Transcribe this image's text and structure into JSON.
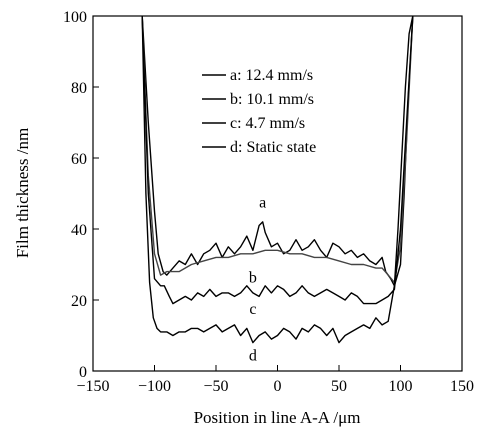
{
  "chart_data": {
    "type": "line",
    "xlabel": "Position in line A-A /μm",
    "ylabel": "Film thickness /nm",
    "xlim": [
      -150,
      150
    ],
    "ylim": [
      0,
      100
    ],
    "xticks": [
      -150,
      -100,
      -50,
      0,
      50,
      100,
      150
    ],
    "yticks": [
      0,
      20,
      40,
      60,
      80,
      100
    ],
    "grid": false,
    "legend_position": "upper-center",
    "series": [
      {
        "name": "a: 12.4 mm/s",
        "label": "a",
        "x": [
          -110,
          -105,
          -100,
          -97,
          -93,
          -90,
          -85,
          -80,
          -75,
          -70,
          -65,
          -60,
          -55,
          -50,
          -45,
          -40,
          -35,
          -30,
          -25,
          -20,
          -15,
          -12,
          -10,
          -5,
          0,
          5,
          10,
          15,
          20,
          25,
          30,
          35,
          40,
          45,
          50,
          55,
          60,
          65,
          70,
          75,
          80,
          85,
          88,
          92,
          95,
          100,
          103,
          106,
          110
        ],
        "y": [
          100,
          70,
          45,
          33,
          28,
          27,
          29,
          31,
          30,
          33,
          30,
          33,
          34,
          36,
          32,
          35,
          33,
          35,
          38,
          34,
          41,
          42,
          39,
          35,
          36,
          33,
          34,
          37,
          34,
          35,
          37,
          34,
          32,
          36,
          35,
          33,
          34,
          32,
          33,
          31,
          30,
          32,
          28,
          26,
          24,
          30,
          50,
          75,
          100
        ]
      },
      {
        "name": "b: 10.1 mm/s",
        "label": "b",
        "x": [
          -110,
          -105,
          -100,
          -95,
          -90,
          -85,
          -80,
          -70,
          -60,
          -50,
          -40,
          -30,
          -20,
          -10,
          0,
          10,
          20,
          30,
          40,
          50,
          60,
          70,
          80,
          85,
          90,
          95,
          100,
          105,
          110
        ],
        "y": [
          100,
          55,
          33,
          27,
          28,
          28,
          28,
          30,
          31,
          32,
          32,
          33,
          33,
          34,
          34,
          33,
          33,
          32,
          32,
          31,
          30,
          30,
          29,
          29,
          27,
          25,
          35,
          65,
          100
        ]
      },
      {
        "name": "c: 4.7 mm/s",
        "label": "c",
        "x": [
          -110,
          -105,
          -100,
          -95,
          -92,
          -88,
          -85,
          -80,
          -75,
          -70,
          -65,
          -60,
          -55,
          -50,
          -45,
          -40,
          -35,
          -30,
          -25,
          -20,
          -15,
          -10,
          -5,
          0,
          5,
          10,
          15,
          20,
          25,
          30,
          35,
          40,
          45,
          50,
          55,
          60,
          65,
          70,
          75,
          80,
          85,
          90,
          95,
          100,
          105,
          110
        ],
        "y": [
          100,
          50,
          26,
          24,
          24,
          21,
          19,
          20,
          21,
          20,
          22,
          21,
          23,
          21,
          22,
          22,
          21,
          22,
          24,
          22,
          21,
          24,
          22,
          24,
          23,
          21,
          22,
          24,
          22,
          21,
          22,
          23,
          22,
          21,
          20,
          22,
          21,
          19,
          19,
          19,
          20,
          21,
          23,
          40,
          70,
          100
        ],
        "line_style": "dashed"
      },
      {
        "name": "d: Static state",
        "label": "d",
        "x": [
          -110,
          -107,
          -104,
          -101,
          -98,
          -95,
          -90,
          -85,
          -80,
          -75,
          -70,
          -65,
          -60,
          -55,
          -50,
          -45,
          -40,
          -35,
          -30,
          -25,
          -20,
          -15,
          -10,
          -5,
          0,
          5,
          10,
          15,
          20,
          25,
          30,
          35,
          40,
          45,
          50,
          55,
          60,
          65,
          70,
          75,
          80,
          85,
          90,
          95,
          98,
          101,
          104,
          107,
          110
        ],
        "y": [
          100,
          50,
          25,
          15,
          12,
          11,
          11,
          10,
          11,
          11,
          12,
          12,
          11,
          12,
          13,
          11,
          12,
          13,
          10,
          12,
          8,
          10,
          11,
          9,
          10,
          12,
          11,
          9,
          12,
          11,
          13,
          12,
          10,
          12,
          8,
          10,
          11,
          12,
          13,
          12,
          15,
          13,
          14,
          24,
          40,
          60,
          80,
          95,
          100
        ]
      }
    ]
  }
}
